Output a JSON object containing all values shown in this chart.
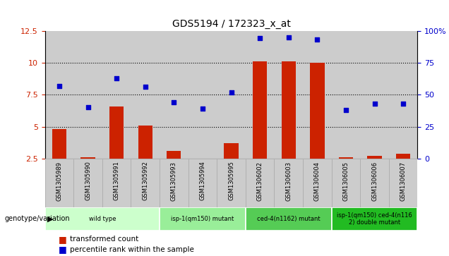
{
  "title": "GDS5194 / 172323_x_at",
  "samples": [
    "GSM1305989",
    "GSM1305990",
    "GSM1305991",
    "GSM1305992",
    "GSM1305993",
    "GSM1305994",
    "GSM1305995",
    "GSM1306002",
    "GSM1306003",
    "GSM1306004",
    "GSM1306005",
    "GSM1306006",
    "GSM1306007"
  ],
  "red_bars": [
    4.8,
    2.6,
    6.6,
    5.1,
    3.1,
    2.5,
    3.7,
    10.1,
    10.1,
    10.0,
    2.6,
    2.7,
    2.9
  ],
  "blue_dots": [
    8.2,
    6.5,
    8.8,
    8.1,
    6.9,
    6.4,
    7.7,
    11.9,
    12.0,
    11.8,
    6.3,
    6.8,
    6.8
  ],
  "red_bar_bottom": 2.5,
  "ylim_left": [
    2.5,
    12.5
  ],
  "ylim_right": [
    0,
    100
  ],
  "yticks_left": [
    2.5,
    5.0,
    7.5,
    10.0,
    12.5
  ],
  "yticks_right": [
    0,
    25,
    50,
    75,
    100
  ],
  "ytick_labels_left": [
    "2.5",
    "5",
    "7.5",
    "10",
    "12.5"
  ],
  "ytick_labels_right": [
    "0",
    "25",
    "50",
    "75",
    "100%"
  ],
  "hlines": [
    5.0,
    7.5,
    10.0
  ],
  "group_labels": [
    "wild type",
    "isp-1(qm150) mutant",
    "ced-4(n1162) mutant",
    "isp-1(qm150) ced-4(n116\n2) double mutant"
  ],
  "group_ranges": [
    [
      0,
      3
    ],
    [
      4,
      6
    ],
    [
      7,
      9
    ],
    [
      10,
      12
    ]
  ],
  "group_colors": [
    "#ccffcc",
    "#99ee99",
    "#55cc55",
    "#22bb22"
  ],
  "bar_color": "#cc2200",
  "dot_color": "#0000cc",
  "plot_bg": "#cccccc",
  "legend_bar_label": "transformed count",
  "legend_dot_label": "percentile rank within the sample",
  "genotype_label": "genotype/variation"
}
